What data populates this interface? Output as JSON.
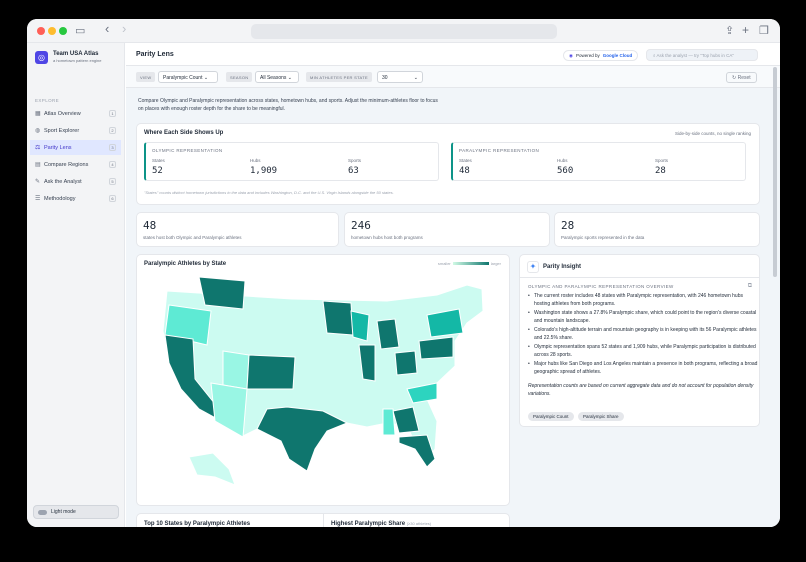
{
  "browser": {
    "title_icons": [
      "sidebar-icon",
      "back-icon",
      "forward-icon",
      "share-icon",
      "new-tab-icon",
      "tabs-icon"
    ]
  },
  "sidebar": {
    "brand_title": "Team USA Atlas",
    "brand_subtitle": "a hometown pattern engine",
    "section": "EXPLORE",
    "items": [
      {
        "label": "Atlas Overview",
        "badge": "1"
      },
      {
        "label": "Sport Explorer",
        "badge": "2"
      },
      {
        "label": "Parity Lens",
        "badge": "3"
      },
      {
        "label": "Compare Regions",
        "badge": "4"
      },
      {
        "label": "Ask the Analyst",
        "badge": "5"
      },
      {
        "label": "Methodology",
        "badge": "6"
      }
    ],
    "light_mode": "Light mode"
  },
  "header": {
    "title": "Parity Lens",
    "powered": "Powered by",
    "google": "Google Cloud",
    "ask_placeholder": "Ask the analyst — try \"Top hubs in CA\""
  },
  "filters": {
    "view_label": "VIEW",
    "view_value": "Paralympic Count",
    "season_label": "SEASON",
    "season_value": "All Seasons",
    "min_label": "MIN ATHLETES PER STATE",
    "min_value": "30",
    "reset": "Reset"
  },
  "intro": "Compare Olympic and Paralympic representation across states, hometown hubs, and sports. Adjust the minimum-athletes floor to focus on places with enough roster depth for the share to be meaningful.",
  "sides": {
    "title": "Where Each Side Shows Up",
    "note": "Side-by-side counts, no single ranking",
    "olympic": {
      "heading": "OLYMPIC REPRESENTATION",
      "states_label": "States",
      "states": "52",
      "hubs_label": "Hubs",
      "hubs": "1,909",
      "sports_label": "Sports",
      "sports": "63"
    },
    "paralympic": {
      "heading": "PARALYMPIC REPRESENTATION",
      "states_label": "States",
      "states": "48",
      "hubs_label": "Hubs",
      "hubs": "560",
      "sports_label": "Sports",
      "sports": "28"
    },
    "footnote": "\"States\" counts distinct hometown jurisdictions in the data and includes Washington, D.C. and the U.S. Virgin Islands alongside the 50 states."
  },
  "stats": [
    {
      "num": "48",
      "desc": "states host both Olympic and Paralympic athletes"
    },
    {
      "num": "246",
      "desc": "hometown hubs host both programs"
    },
    {
      "num": "28",
      "desc": "Paralympic sports represented in the data"
    }
  ],
  "map": {
    "title": "Paralympic Athletes by State",
    "legend_low": "smaller",
    "legend_high": "larger"
  },
  "insight": {
    "title": "Parity Insight",
    "heading": "OLYMPIC AND PARALYMPIC REPRESENTATION OVERVIEW",
    "bullets": [
      "The current roster includes 48 states with Paralympic representation, with 246 hometown hubs hosting athletes from both programs.",
      "Washington state shows a 27.8% Paralympic share, which could point to the region's diverse coastal and mountain landscape.",
      "Colorado's high-altitude terrain and mountain geography is in keeping with its 56 Paralympic athletes and 22.5% share.",
      "Olympic representation spans 52 states and 1,909 hubs, while Paralympic participation is distributed across 28 sports.",
      "Major hubs like San Diego and Los Angeles maintain a presence in both programs, reflecting a broad geographic spread of athletes."
    ],
    "note": "Representation counts are based on current aggregate data and do not account for population density variations.",
    "chips": [
      "Paralympic Count",
      "Paralympic Share"
    ]
  },
  "bottom": {
    "left_title": "Top 10 States by Paralympic Athletes",
    "right_title": "Highest Paralympic Share",
    "right_note": "(≥30 athletes)"
  },
  "colors": {
    "accent": "#4f46e5",
    "teal_dark": "#0f766e",
    "teal_light": "#ccfbf1"
  }
}
